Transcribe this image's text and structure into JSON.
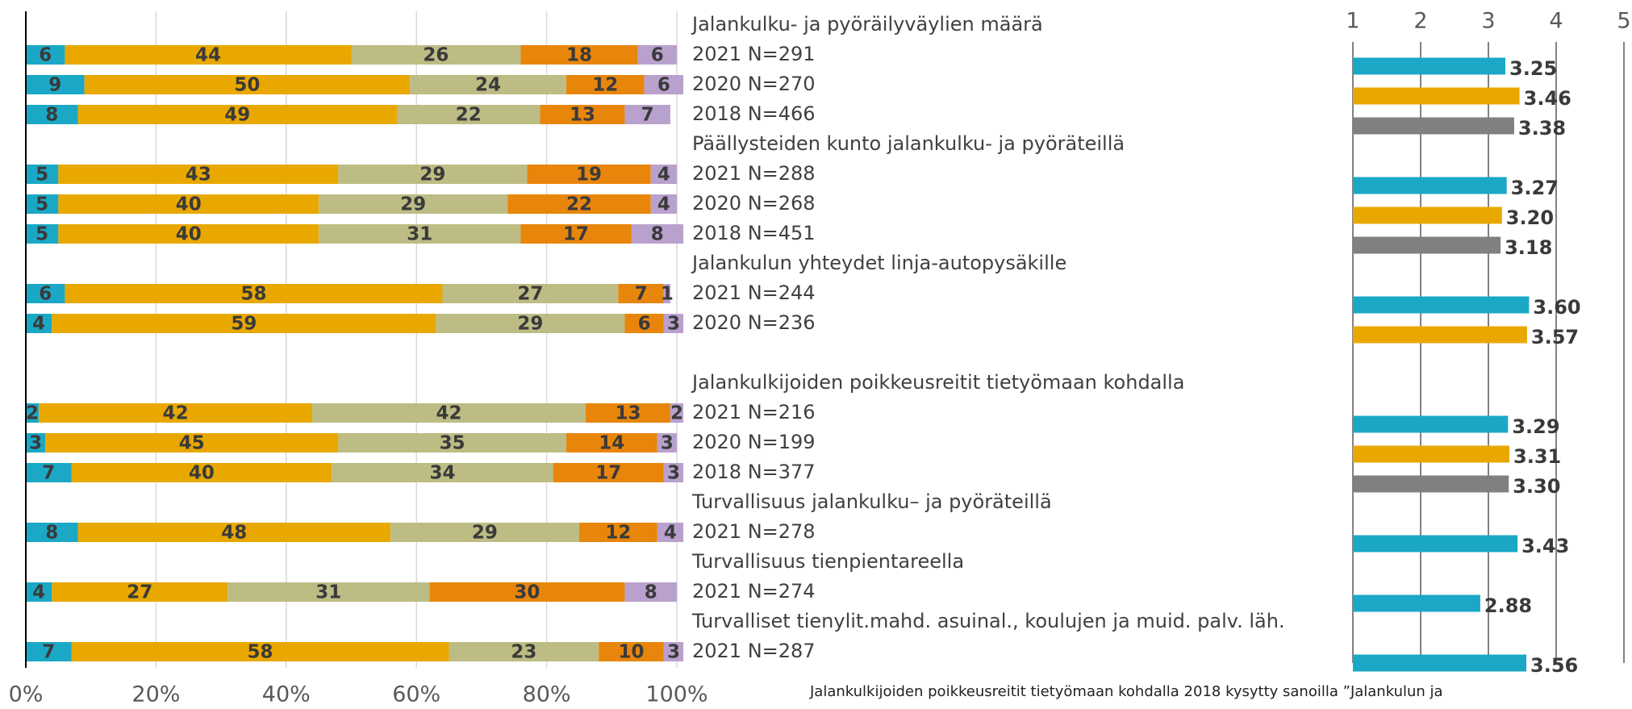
{
  "chart_data": [
    {
      "type": "stacked_bar",
      "xlim": [
        0,
        100
      ],
      "xticks": [
        {
          "value": 0,
          "label": "0%"
        },
        {
          "value": 20,
          "label": "20%"
        },
        {
          "value": 40,
          "label": "40%"
        },
        {
          "value": 60,
          "label": "60%"
        },
        {
          "value": 80,
          "label": "80%"
        },
        {
          "value": 100,
          "label": "100%"
        }
      ],
      "colors": [
        "#1aa8c6",
        "#e9a800",
        "#bdbc84",
        "#e8860c",
        "#b9a1cd"
      ],
      "groups": [
        {
          "title": "Jalankulku- ja pyöräilyväylien määrä",
          "categories": [
            "2021 N=291",
            "2020 N=270",
            "2018 N=466"
          ],
          "values": [
            [
              6,
              44,
              26,
              18,
              6
            ],
            [
              9,
              50,
              24,
              12,
              6
            ],
            [
              8,
              49,
              22,
              13,
              7
            ]
          ]
        },
        {
          "title": "Päällysteiden kunto jalankulku- ja pyöräteillä",
          "categories": [
            "2021 N=288",
            "2020 N=268",
            "2018 N=451"
          ],
          "values": [
            [
              5,
              43,
              29,
              19,
              4
            ],
            [
              5,
              40,
              29,
              22,
              4
            ],
            [
              5,
              40,
              31,
              17,
              8
            ]
          ]
        },
        {
          "title": "Jalankulun yhteydet linja-autopysäkille",
          "categories": [
            "2021 N=244",
            "2020 N=236"
          ],
          "values": [
            [
              6,
              58,
              27,
              7,
              1
            ],
            [
              4,
              59,
              29,
              6,
              3
            ]
          ]
        },
        {
          "title": "Jalankulkijoiden poikkeusreitit tietyömaan kohdalla",
          "categories": [
            "2021 N=216",
            "2020 N=199",
            "2018 N=377"
          ],
          "values": [
            [
              2,
              42,
              42,
              13,
              2
            ],
            [
              3,
              45,
              35,
              14,
              3
            ],
            [
              7,
              40,
              34,
              17,
              3
            ]
          ]
        },
        {
          "title": "Turvallisuus jalankulku– ja pyöräteillä",
          "categories": [
            "2021 N=278"
          ],
          "values": [
            [
              8,
              48,
              29,
              12,
              4
            ]
          ]
        },
        {
          "title": "Turvallisuus tienpientareella",
          "categories": [
            "2021 N=274"
          ],
          "values": [
            [
              4,
              27,
              31,
              30,
              8
            ]
          ]
        },
        {
          "title": "Turvalliset tienylit.mahd. asuinal., koulujen ja muid. palv. läh.",
          "categories": [
            "2021 N=287"
          ],
          "values": [
            [
              7,
              58,
              23,
              10,
              3
            ]
          ]
        }
      ],
      "footnote": "Jalankulkijoiden poikkeusreitit tietyömaan kohdalla 2018 kysytty sanoilla ”Jalankulun ja"
    },
    {
      "type": "bar",
      "xlim": [
        1,
        5
      ],
      "xticks": [
        1,
        2,
        3,
        4,
        5
      ],
      "colors": [
        "#1aa8c6",
        "#e9a800",
        "#808080"
      ],
      "groups": [
        {
          "values": [
            3.25,
            3.46,
            3.38
          ],
          "value_labels": [
            "3.25",
            "3.46",
            "3.38"
          ]
        },
        {
          "values": [
            3.27,
            3.2,
            3.18
          ],
          "value_labels": [
            "3.27",
            "3.20",
            "3.18"
          ]
        },
        {
          "values": [
            3.6,
            3.57
          ],
          "value_labels": [
            "3.60",
            "3.57"
          ]
        },
        {
          "values": [
            3.29,
            3.31,
            3.3
          ],
          "value_labels": [
            "3.29",
            "3.31",
            "3.30"
          ]
        },
        {
          "values": [
            3.43
          ],
          "value_labels": [
            "3.43"
          ]
        },
        {
          "values": [
            2.88
          ],
          "value_labels": [
            "2.88"
          ]
        },
        {
          "values": [
            3.56
          ],
          "value_labels": [
            "3.56"
          ]
        }
      ]
    }
  ]
}
